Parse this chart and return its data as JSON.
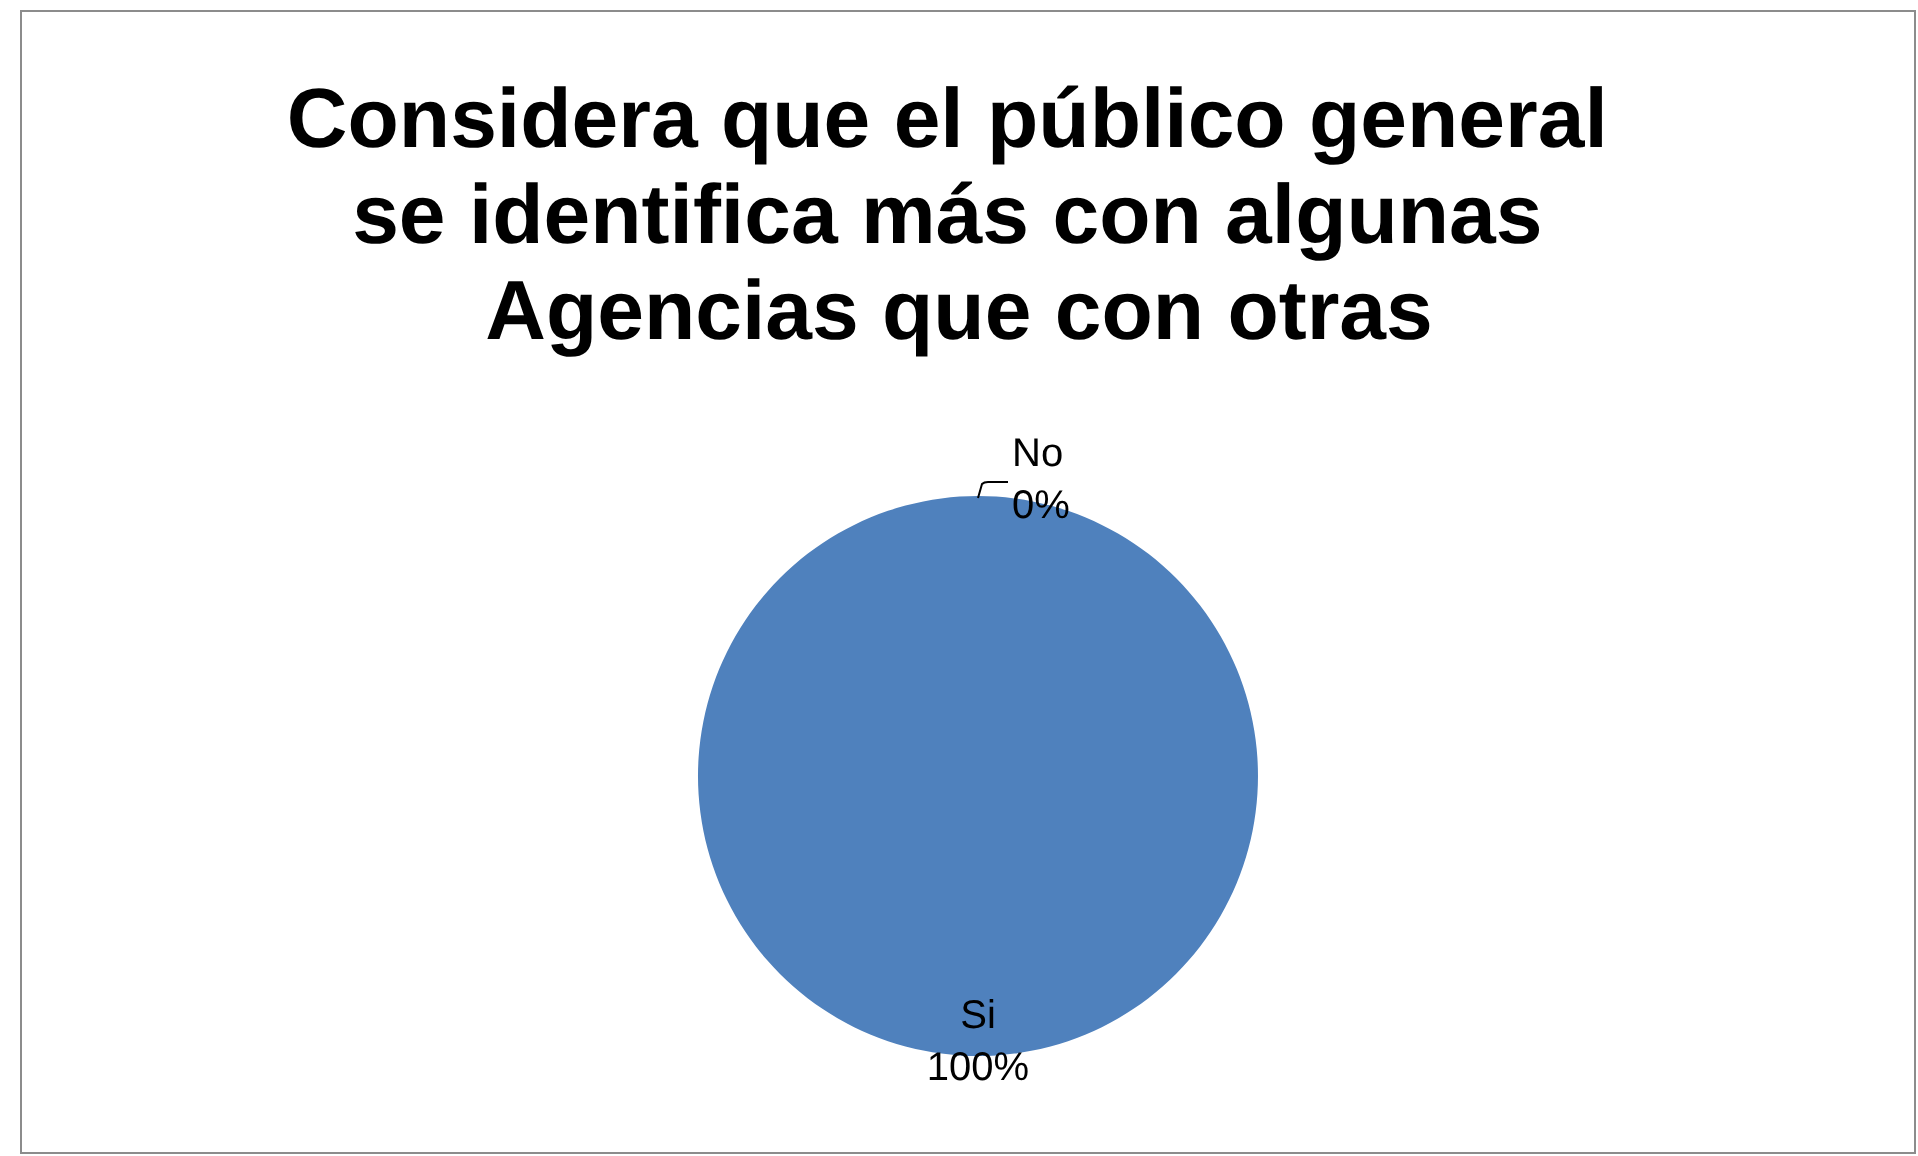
{
  "chart_data": {
    "type": "pie",
    "title": "Considera que el público general se identifica más con algunas Agencias que con otras",
    "categories": [
      "Si",
      "No"
    ],
    "values": [
      100,
      0
    ],
    "colors": [
      "#4f81bd",
      "#c0504d"
    ],
    "value_labels": [
      "100%",
      "0%"
    ]
  }
}
